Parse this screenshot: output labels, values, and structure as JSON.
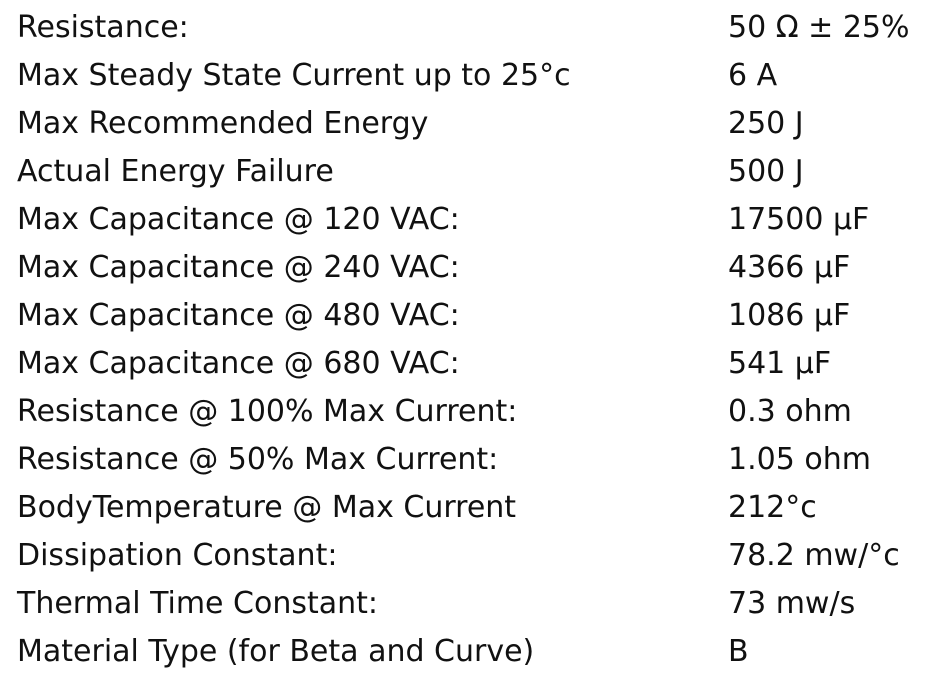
{
  "table": {
    "rows": [
      [
        "Resistance:",
        "50 Ω ± 25%"
      ],
      [
        "Max Steady State Current up to 25°c",
        "6 A"
      ],
      [
        "Max Recommended Energy",
        "250 J"
      ],
      [
        "Actual Energy Failure",
        "500 J"
      ],
      [
        "Max Capacitance @ 120 VAC:",
        "17500 µF"
      ],
      [
        "Max Capacitance @ 240 VAC:",
        "4366 µF"
      ],
      [
        "Max Capacitance @ 480 VAC:",
        "1086 µF"
      ],
      [
        "Max Capacitance @ 680 VAC:",
        "541 µF"
      ],
      [
        "Resistance @ 100% Max Current:",
        "0.3 ohm"
      ],
      [
        "Resistance @ 50% Max Current:",
        "1.05 ohm"
      ],
      [
        "BodyTemperature @ Max Current",
        "212°c"
      ],
      [
        "Dissipation Constant:",
        "78.2 mw/°c"
      ],
      [
        "Thermal Time Constant:",
        "73 mw/s"
      ],
      [
        "Material Type (for Beta and Curve)",
        "B"
      ]
    ]
  }
}
